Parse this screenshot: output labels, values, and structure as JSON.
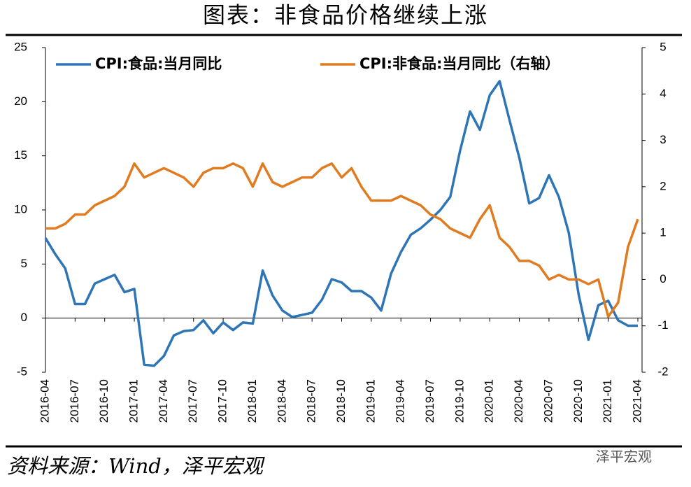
{
  "chart_data": {
    "type": "line",
    "title": "图表：非食品价格继续上涨",
    "source": "资料来源：Wind，泽平宏观",
    "watermark": "泽平宏观",
    "categories": [
      "2016-04",
      null,
      null,
      "2016-07",
      null,
      null,
      "2016-10",
      null,
      null,
      "2017-01",
      null,
      null,
      "2017-04",
      null,
      null,
      "2017-07",
      null,
      null,
      "2017-10",
      null,
      null,
      "2018-01",
      null,
      null,
      "2018-04",
      null,
      null,
      "2018-07",
      null,
      null,
      "2018-10",
      null,
      null,
      "2019-01",
      null,
      null,
      "2019-04",
      null,
      null,
      "2019-07",
      null,
      null,
      "2019-10",
      null,
      null,
      "2020-01",
      null,
      null,
      "2020-04",
      null,
      null,
      "2020-07",
      null,
      null,
      "2020-10",
      null,
      null,
      "2021-01",
      null,
      null,
      "2021-04"
    ],
    "series": [
      {
        "name": "CPI:食品:当月同比",
        "color": "#2e75b6",
        "axis": "y",
        "values": [
          7.4,
          5.9,
          4.6,
          1.3,
          1.3,
          3.2,
          3.6,
          4.0,
          2.4,
          2.7,
          -4.3,
          -4.4,
          -3.5,
          -1.6,
          -1.2,
          -1.1,
          -0.2,
          -1.4,
          -0.4,
          -1.1,
          -0.4,
          -0.5,
          4.4,
          2.1,
          0.7,
          0.1,
          0.3,
          0.5,
          1.7,
          3.6,
          3.3,
          2.5,
          2.5,
          1.9,
          0.7,
          4.1,
          6.1,
          7.7,
          8.3,
          9.1,
          10.0,
          11.2,
          15.5,
          19.1,
          17.4,
          20.6,
          21.9,
          18.3,
          14.8,
          10.6,
          11.1,
          13.2,
          11.2,
          7.9,
          2.2,
          -2.0,
          1.2,
          1.6,
          -0.2,
          -0.7,
          -0.7
        ]
      },
      {
        "name": "CPI:非食品:当月同比（右轴）",
        "color": "#e07b20",
        "axis": "y2",
        "values": [
          1.1,
          1.1,
          1.2,
          1.4,
          1.4,
          1.6,
          1.7,
          1.8,
          2.0,
          2.5,
          2.2,
          2.3,
          2.4,
          2.3,
          2.2,
          2.0,
          2.3,
          2.4,
          2.4,
          2.5,
          2.4,
          2.0,
          2.5,
          2.1,
          2.0,
          2.1,
          2.2,
          2.2,
          2.4,
          2.5,
          2.2,
          2.4,
          2.0,
          1.7,
          1.7,
          1.7,
          1.8,
          1.7,
          1.6,
          1.4,
          1.3,
          1.1,
          1.0,
          0.9,
          1.3,
          1.6,
          0.9,
          0.7,
          0.4,
          0.4,
          0.3,
          0.0,
          0.1,
          0.0,
          0.0,
          -0.1,
          0.0,
          -0.8,
          -0.5,
          0.7,
          1.3
        ]
      }
    ],
    "ylim": [
      -5,
      25
    ],
    "yticks": [
      -5,
      0,
      5,
      10,
      15,
      20,
      25
    ],
    "y2lim": [
      -2,
      5
    ],
    "y2ticks": [
      -2,
      -1,
      0,
      1,
      2,
      3,
      4,
      5
    ],
    "legend": "top"
  }
}
